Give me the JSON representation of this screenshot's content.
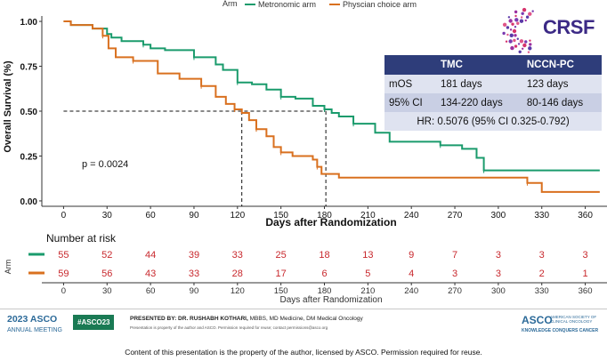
{
  "chart_data": {
    "type": "line",
    "subtype": "kaplan-meier",
    "legend_title": "Arm",
    "legend_placement": "top-center",
    "series": [
      {
        "name": "Metronomic arm",
        "color": "#1a9b6c",
        "steps": [
          [
            0,
            1.0
          ],
          [
            5,
            0.98
          ],
          [
            20,
            0.96
          ],
          [
            30,
            0.93
          ],
          [
            33,
            0.91
          ],
          [
            40,
            0.89
          ],
          [
            55,
            0.87
          ],
          [
            60,
            0.85
          ],
          [
            70,
            0.84
          ],
          [
            90,
            0.8
          ],
          [
            105,
            0.76
          ],
          [
            110,
            0.73
          ],
          [
            120,
            0.66
          ],
          [
            130,
            0.65
          ],
          [
            140,
            0.62
          ],
          [
            150,
            0.58
          ],
          [
            160,
            0.57
          ],
          [
            172,
            0.53
          ],
          [
            180,
            0.51
          ],
          [
            185,
            0.49
          ],
          [
            190,
            0.47
          ],
          [
            200,
            0.43
          ],
          [
            215,
            0.38
          ],
          [
            225,
            0.33
          ],
          [
            260,
            0.31
          ],
          [
            275,
            0.29
          ],
          [
            285,
            0.24
          ],
          [
            290,
            0.17
          ],
          [
            330,
            0.17
          ],
          [
            370,
            0.17
          ]
        ]
      },
      {
        "name": "Physcian choice arm",
        "color": "#d9701f",
        "steps": [
          [
            0,
            1.0
          ],
          [
            5,
            0.98
          ],
          [
            20,
            0.96
          ],
          [
            27,
            0.92
          ],
          [
            31,
            0.85
          ],
          [
            36,
            0.8
          ],
          [
            48,
            0.78
          ],
          [
            65,
            0.71
          ],
          [
            80,
            0.68
          ],
          [
            95,
            0.64
          ],
          [
            105,
            0.58
          ],
          [
            112,
            0.54
          ],
          [
            118,
            0.51
          ],
          [
            123,
            0.49
          ],
          [
            128,
            0.45
          ],
          [
            133,
            0.4
          ],
          [
            140,
            0.36
          ],
          [
            145,
            0.3
          ],
          [
            150,
            0.27
          ],
          [
            158,
            0.25
          ],
          [
            172,
            0.23
          ],
          [
            175,
            0.19
          ],
          [
            178,
            0.15
          ],
          [
            190,
            0.13
          ],
          [
            320,
            0.1
          ],
          [
            330,
            0.05
          ],
          [
            370,
            0.05
          ]
        ]
      }
    ],
    "median_lines": [
      {
        "series": "Physcian choice arm",
        "x": 123,
        "y": 0.5
      },
      {
        "series": "Metronomic arm",
        "x": 181,
        "y": 0.5
      }
    ],
    "annotation": "p = 0.0024",
    "xlabel": "Days after Randomization",
    "ylabel": "Overall Survival (%)",
    "xlim": [
      -15,
      375
    ],
    "ylim": [
      -0.03,
      1.03
    ],
    "xticks": [
      "0",
      "30",
      "60",
      "90",
      "120",
      "150",
      "180",
      "210",
      "240",
      "270",
      "300",
      "330",
      "360"
    ],
    "yticks": [
      "0.00",
      "0.25",
      "0.50",
      "0.75",
      "1.00"
    ],
    "risk_table": {
      "title": "Number at risk",
      "row_label": "Arm",
      "times": [
        "0",
        "30",
        "60",
        "90",
        "120",
        "150",
        "180",
        "210",
        "240",
        "270",
        "300",
        "330",
        "360"
      ],
      "xlabel": "Days after Randomization",
      "rows": [
        {
          "series": "Metronomic arm",
          "color": "#1a9b6c",
          "counts": [
            "55",
            "52",
            "44",
            "39",
            "33",
            "25",
            "18",
            "13",
            "9",
            "7",
            "3",
            "3",
            "3"
          ]
        },
        {
          "series": "Physcian choice arm",
          "color": "#d9701f",
          "counts": [
            "59",
            "56",
            "43",
            "33",
            "28",
            "17",
            "6",
            "5",
            "4",
            "3",
            "3",
            "2",
            "1"
          ]
        }
      ]
    }
  },
  "logo": {
    "name": "CRSF"
  },
  "stats_table": {
    "headers": [
      "",
      "TMC",
      "NCCN-PC"
    ],
    "rows": [
      [
        "mOS",
        "181 days",
        "123 days"
      ],
      [
        "95% CI",
        "134-220 days",
        "80-146 days"
      ]
    ],
    "hr": "HR: 0.5076 (95% CI 0.325-0.792)"
  },
  "footer": {
    "asco_year": "2023",
    "asco_word": "ASCO",
    "asco_meeting": "ANNUAL MEETING",
    "hashtag": "#ASCO23",
    "presented_by": "PRESENTED BY: DR. RUSHABH KOTHARI,",
    "presenter_degrees": "MBBS, MD Medicine, DM Medical Oncology",
    "permission_note": "Presentation is property of the author and ASCO. Permission required for reuse; contact permissions@asco.org",
    "asco_right": "ASCO",
    "asco_right_sub": "AMERICAN SOCIETY OF CLINICAL ONCOLOGY",
    "asco_right_tag": "KNOWLEDGE CONQUERS CANCER"
  },
  "copyright": "Content of this presentation is the property of the author, licensed by ASCO. Permission required for reuse."
}
